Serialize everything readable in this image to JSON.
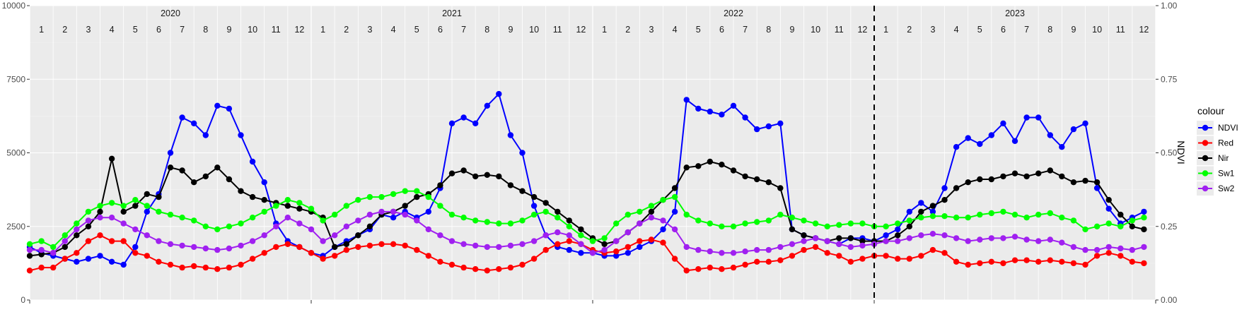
{
  "chart_data": {
    "type": "line",
    "y_left": {
      "range": [
        0,
        10000
      ],
      "ticks": [
        "0",
        "2500",
        "5000",
        "7500",
        "10000"
      ]
    },
    "y_right": {
      "label": "NDVI",
      "range": [
        0,
        1
      ],
      "ticks": [
        "0.00",
        "0.25",
        "0.50",
        "0.75",
        "1.00"
      ]
    },
    "years": [
      "2020",
      "2021",
      "2022",
      "2023"
    ],
    "months": [
      "1",
      "2",
      "3",
      "4",
      "5",
      "6",
      "7",
      "8",
      "9",
      "10",
      "11",
      "12"
    ],
    "vline_x": 36,
    "legend": {
      "title": "colour",
      "position": "right"
    },
    "grid": true,
    "colors": {
      "NDVI": "#0000ff",
      "Red": "#ff0000",
      "Nir": "#000000",
      "Sw1": "#00ff00",
      "Sw2": "#a020f0"
    },
    "series": [
      {
        "name": "NDVI",
        "axis": "right",
        "x": [
          0.0,
          0.5,
          1.0,
          1.5,
          2.0,
          2.5,
          3.0,
          3.5,
          4.0,
          4.5,
          5.0,
          5.5,
          6.0,
          6.5,
          7.0,
          7.5,
          8.0,
          8.5,
          9.0,
          9.5,
          10.0,
          10.5,
          11.0,
          11.5,
          12.0,
          12.5,
          13.0,
          13.5,
          14.0,
          14.5,
          15.0,
          15.5,
          16.0,
          16.5,
          17.0,
          17.5,
          18.0,
          18.5,
          19.0,
          19.5,
          20.0,
          20.5,
          21.0,
          21.5,
          22.0,
          22.5,
          23.0,
          23.5,
          24.0,
          24.5,
          25.0,
          25.5,
          26.0,
          26.5,
          27.0,
          27.5,
          28.0,
          28.5,
          29.0,
          29.5,
          30.0,
          30.5,
          31.0,
          31.5,
          32.0,
          32.5,
          33.0,
          33.5,
          34.0,
          34.5,
          35.0,
          35.5,
          36.0,
          36.5,
          37.0,
          37.5,
          38.0,
          38.5,
          39.0,
          39.5,
          40.0,
          40.5,
          41.0,
          41.5,
          42.0,
          42.5,
          43.0,
          43.5,
          44.0,
          44.5,
          45.0,
          45.5,
          46.0,
          46.5,
          47.0,
          47.5
        ],
        "y": [
          0.18,
          0.16,
          0.15,
          0.14,
          0.13,
          0.14,
          0.15,
          0.13,
          0.12,
          0.18,
          0.3,
          0.36,
          0.5,
          0.62,
          0.6,
          0.56,
          0.66,
          0.65,
          0.56,
          0.47,
          0.4,
          0.26,
          0.2,
          0.18,
          0.16,
          0.15,
          0.18,
          0.2,
          0.22,
          0.24,
          0.29,
          0.28,
          0.3,
          0.28,
          0.3,
          0.38,
          0.6,
          0.62,
          0.6,
          0.66,
          0.7,
          0.56,
          0.5,
          0.32,
          0.22,
          0.18,
          0.17,
          0.16,
          0.16,
          0.15,
          0.15,
          0.16,
          0.18,
          0.2,
          0.24,
          0.3,
          0.68,
          0.65,
          0.64,
          0.63,
          0.66,
          0.62,
          0.58,
          0.59,
          0.6,
          0.24,
          0.22,
          0.21,
          0.2,
          0.19,
          0.21,
          0.21,
          0.2,
          0.22,
          0.24,
          0.3,
          0.33,
          0.3,
          0.38,
          0.52,
          0.55,
          0.53,
          0.56,
          0.6,
          0.54,
          0.62,
          0.62,
          0.56,
          0.52,
          0.58,
          0.6,
          0.38,
          0.31,
          0.26,
          0.28,
          0.3
        ]
      },
      {
        "name": "Red",
        "axis": "left",
        "x": [
          0.0,
          0.5,
          1.0,
          1.5,
          2.0,
          2.5,
          3.0,
          3.5,
          4.0,
          4.5,
          5.0,
          5.5,
          6.0,
          6.5,
          7.0,
          7.5,
          8.0,
          8.5,
          9.0,
          9.5,
          10.0,
          10.5,
          11.0,
          11.5,
          12.0,
          12.5,
          13.0,
          13.5,
          14.0,
          14.5,
          15.0,
          15.5,
          16.0,
          16.5,
          17.0,
          17.5,
          18.0,
          18.5,
          19.0,
          19.5,
          20.0,
          20.5,
          21.0,
          21.5,
          22.0,
          22.5,
          23.0,
          23.5,
          24.0,
          24.5,
          25.0,
          25.5,
          26.0,
          26.5,
          27.0,
          27.5,
          28.0,
          28.5,
          29.0,
          29.5,
          30.0,
          30.5,
          31.0,
          31.5,
          32.0,
          32.5,
          33.0,
          33.5,
          34.0,
          34.5,
          35.0,
          35.5,
          36.0,
          36.5,
          37.0,
          37.5,
          38.0,
          38.5,
          39.0,
          39.5,
          40.0,
          40.5,
          41.0,
          41.5,
          42.0,
          42.5,
          43.0,
          43.5,
          44.0,
          44.5,
          45.0,
          45.5,
          46.0,
          46.5,
          47.0,
          47.5
        ],
        "y": [
          1000,
          1100,
          1100,
          1400,
          1600,
          2000,
          2200,
          2000,
          2000,
          1600,
          1500,
          1300,
          1200,
          1100,
          1150,
          1100,
          1050,
          1100,
          1200,
          1400,
          1600,
          1800,
          1900,
          1800,
          1600,
          1400,
          1500,
          1700,
          1800,
          1850,
          1900,
          1900,
          1850,
          1700,
          1500,
          1300,
          1200,
          1100,
          1050,
          1000,
          1050,
          1100,
          1200,
          1400,
          1700,
          1900,
          2000,
          1900,
          1700,
          1600,
          1650,
          1800,
          2000,
          2050,
          1950,
          1400,
          1000,
          1050,
          1100,
          1050,
          1100,
          1200,
          1300,
          1300,
          1350,
          1500,
          1700,
          1800,
          1600,
          1500,
          1300,
          1400,
          1500,
          1500,
          1400,
          1400,
          1500,
          1700,
          1600,
          1300,
          1200,
          1250,
          1300,
          1250,
          1350,
          1350,
          1300,
          1350,
          1300,
          1250,
          1200,
          1500,
          1600,
          1500,
          1300,
          1250
        ]
      },
      {
        "name": "Nir",
        "axis": "left",
        "x": [
          0.0,
          0.5,
          1.0,
          1.5,
          2.0,
          2.5,
          3.0,
          3.5,
          4.0,
          4.5,
          5.0,
          5.5,
          6.0,
          6.5,
          7.0,
          7.5,
          8.0,
          8.5,
          9.0,
          9.5,
          10.0,
          10.5,
          11.0,
          11.5,
          12.0,
          12.5,
          13.0,
          13.5,
          14.0,
          14.5,
          15.0,
          15.5,
          16.0,
          16.5,
          17.0,
          17.5,
          18.0,
          18.5,
          19.0,
          19.5,
          20.0,
          20.5,
          21.0,
          21.5,
          22.0,
          22.5,
          23.0,
          23.5,
          24.0,
          24.5,
          25.0,
          25.5,
          26.0,
          26.5,
          27.0,
          27.5,
          28.0,
          28.5,
          29.0,
          29.5,
          30.0,
          30.5,
          31.0,
          31.5,
          32.0,
          32.5,
          33.0,
          33.5,
          34.0,
          34.5,
          35.0,
          35.5,
          36.0,
          36.5,
          37.0,
          37.5,
          38.0,
          38.5,
          39.0,
          39.5,
          40.0,
          40.5,
          41.0,
          41.5,
          42.0,
          42.5,
          43.0,
          43.5,
          44.0,
          44.5,
          45.0,
          45.5,
          46.0,
          46.5,
          47.0,
          47.5
        ],
        "y": [
          1500,
          1550,
          1600,
          1800,
          2200,
          2500,
          3000,
          4800,
          3000,
          3200,
          3600,
          3500,
          4500,
          4400,
          4000,
          4200,
          4500,
          4100,
          3700,
          3500,
          3400,
          3300,
          3200,
          3100,
          3000,
          2800,
          1800,
          1900,
          2200,
          2500,
          2900,
          3000,
          3200,
          3500,
          3600,
          3900,
          4300,
          4400,
          4200,
          4250,
          4200,
          3900,
          3700,
          3500,
          3300,
          3000,
          2700,
          2400,
          2100,
          1900,
          2000,
          2300,
          2600,
          3000,
          3400,
          3800,
          4500,
          4550,
          4700,
          4600,
          4400,
          4200,
          4100,
          4000,
          3800,
          2400,
          2200,
          2100,
          2000,
          2100,
          2100,
          2000,
          2000,
          2000,
          2200,
          2500,
          3000,
          3200,
          3400,
          3800,
          4000,
          4100,
          4100,
          4200,
          4300,
          4200,
          4300,
          4400,
          4200,
          4000,
          4050,
          4000,
          3400,
          2900,
          2500,
          2400
        ]
      },
      {
        "name": "Sw1",
        "axis": "left",
        "x": [
          0.0,
          0.5,
          1.0,
          1.5,
          2.0,
          2.5,
          3.0,
          3.5,
          4.0,
          4.5,
          5.0,
          5.5,
          6.0,
          6.5,
          7.0,
          7.5,
          8.0,
          8.5,
          9.0,
          9.5,
          10.0,
          10.5,
          11.0,
          11.5,
          12.0,
          12.5,
          13.0,
          13.5,
          14.0,
          14.5,
          15.0,
          15.5,
          16.0,
          16.5,
          17.0,
          17.5,
          18.0,
          18.5,
          19.0,
          19.5,
          20.0,
          20.5,
          21.0,
          21.5,
          22.0,
          22.5,
          23.0,
          23.5,
          24.0,
          24.5,
          25.0,
          25.5,
          26.0,
          26.5,
          27.0,
          27.5,
          28.0,
          28.5,
          29.0,
          29.5,
          30.0,
          30.5,
          31.0,
          31.5,
          32.0,
          32.5,
          33.0,
          33.5,
          34.0,
          34.5,
          35.0,
          35.5,
          36.0,
          36.5,
          37.0,
          37.5,
          38.0,
          38.5,
          39.0,
          39.5,
          40.0,
          40.5,
          41.0,
          41.5,
          42.0,
          42.5,
          43.0,
          43.5,
          44.0,
          44.5,
          45.0,
          45.5,
          46.0,
          46.5,
          47.0,
          47.5
        ],
        "y": [
          1900,
          2000,
          1800,
          2200,
          2600,
          3000,
          3200,
          3300,
          3200,
          3400,
          3200,
          3000,
          2900,
          2800,
          2700,
          2500,
          2400,
          2500,
          2600,
          2800,
          3000,
          3200,
          3400,
          3300,
          3100,
          2700,
          2900,
          3200,
          3400,
          3500,
          3500,
          3600,
          3700,
          3700,
          3500,
          3200,
          2900,
          2800,
          2700,
          2650,
          2600,
          2600,
          2700,
          2900,
          3000,
          2800,
          2500,
          2200,
          2000,
          2100,
          2600,
          2900,
          3000,
          3200,
          3400,
          3500,
          2900,
          2700,
          2600,
          2500,
          2500,
          2600,
          2650,
          2700,
          2900,
          2800,
          2700,
          2600,
          2500,
          2550,
          2600,
          2600,
          2500,
          2500,
          2600,
          2700,
          2800,
          2850,
          2850,
          2800,
          2800,
          2900,
          2950,
          3000,
          2900,
          2800,
          2900,
          2950,
          2800,
          2700,
          2400,
          2500,
          2600,
          2500,
          2700,
          2800
        ]
      },
      {
        "name": "Sw2",
        "axis": "left",
        "x": [
          0.0,
          0.5,
          1.0,
          1.5,
          2.0,
          2.5,
          3.0,
          3.5,
          4.0,
          4.5,
          5.0,
          5.5,
          6.0,
          6.5,
          7.0,
          7.5,
          8.0,
          8.5,
          9.0,
          9.5,
          10.0,
          10.5,
          11.0,
          11.5,
          12.0,
          12.5,
          13.0,
          13.5,
          14.0,
          14.5,
          15.0,
          15.5,
          16.0,
          16.5,
          17.0,
          17.5,
          18.0,
          18.5,
          19.0,
          19.5,
          20.0,
          20.5,
          21.0,
          21.5,
          22.0,
          22.5,
          23.0,
          23.5,
          24.0,
          24.5,
          25.0,
          25.5,
          26.0,
          26.5,
          27.0,
          27.5,
          28.0,
          28.5,
          29.0,
          29.5,
          30.0,
          30.5,
          31.0,
          31.5,
          32.0,
          32.5,
          33.0,
          33.5,
          34.0,
          34.5,
          35.0,
          35.5,
          36.0,
          36.5,
          37.0,
          37.5,
          38.0,
          38.5,
          39.0,
          39.5,
          40.0,
          40.5,
          41.0,
          41.5,
          42.0,
          42.5,
          43.0,
          43.5,
          44.0,
          44.5,
          45.0,
          45.5,
          46.0,
          46.5,
          47.0,
          47.5
        ],
        "y": [
          1700,
          1700,
          1600,
          2000,
          2400,
          2700,
          2800,
          2800,
          2600,
          2400,
          2200,
          2000,
          1900,
          1850,
          1800,
          1750,
          1700,
          1750,
          1850,
          2000,
          2200,
          2500,
          2800,
          2600,
          2400,
          2000,
          2200,
          2500,
          2700,
          2900,
          3000,
          3000,
          2900,
          2700,
          2400,
          2200,
          2000,
          1900,
          1850,
          1800,
          1800,
          1850,
          1900,
          2000,
          2200,
          2300,
          2200,
          1900,
          1600,
          1700,
          2000,
          2300,
          2600,
          2800,
          2700,
          2400,
          1800,
          1700,
          1650,
          1600,
          1600,
          1650,
          1700,
          1700,
          1800,
          1900,
          2000,
          2100,
          2000,
          1900,
          1800,
          1850,
          1900,
          2000,
          2000,
          2100,
          2200,
          2250,
          2200,
          2100,
          2000,
          2050,
          2100,
          2100,
          2150,
          2050,
          2000,
          2050,
          1950,
          1800,
          1700,
          1700,
          1800,
          1750,
          1700,
          1800
        ]
      }
    ]
  }
}
